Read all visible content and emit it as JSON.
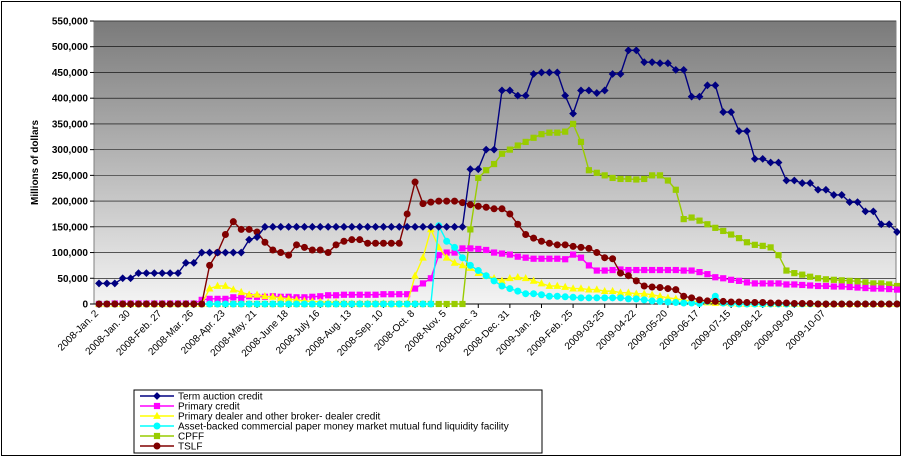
{
  "chart_data": {
    "type": "line",
    "title": "",
    "xlabel": "",
    "ylabel": "Millions of dollars",
    "ylim": [
      0,
      550000
    ],
    "y_ticks": [
      "0",
      "50,000",
      "100,000",
      "150,000",
      "200,000",
      "250,000",
      "300,000",
      "350,000",
      "400,000",
      "450,000",
      "500,000",
      "550,000"
    ],
    "grid": true,
    "legend_position": "bottom-left",
    "x_tick_labels": [
      "2008-Jan. 2",
      "2008-Jan. 30",
      "2008-Feb. 27",
      "2008-Mar. 26",
      "2008-Apr. 23",
      "2008-May. 21",
      "2008-June 18",
      "2008-July 16",
      "2008-Aug. 13",
      "2008-Sep. 10",
      "2008-Oct. 8",
      "2008-Nov. 5",
      "2008-Dec. 3",
      "2008-Dec. 31",
      "2009-Jan. 28",
      "2009-Feb. 25",
      "2009-03-25",
      "2009-04-22",
      "2009-05-20",
      "2009-06-17",
      "2009-07-15",
      "2009-08-12",
      "2009-09-09",
      "2009-10-07"
    ],
    "series": [
      {
        "name": "Term auction credit",
        "color": "#000080",
        "marker": "diamond",
        "values": [
          40000,
          40000,
          40000,
          50000,
          50000,
          60000,
          60000,
          60000,
          60000,
          60000,
          60000,
          80000,
          80000,
          100000,
          100000,
          100000,
          100000,
          100000,
          100000,
          125000,
          130000,
          150000,
          150000,
          150000,
          150000,
          150000,
          150000,
          150000,
          150000,
          150000,
          150000,
          150000,
          150000,
          150000,
          150000,
          150000,
          150000,
          150000,
          150000,
          150000,
          150000,
          150000,
          150000,
          150000,
          150000,
          150000,
          150000,
          262000,
          262000,
          300000,
          300000,
          415000,
          415000,
          405000,
          405000,
          447000,
          450000,
          450000,
          450000,
          405000,
          370000,
          415000,
          415000,
          410000,
          415000,
          447000,
          447000,
          493000,
          493000,
          470000,
          470000,
          468000,
          468000,
          455000,
          455000,
          403000,
          403000,
          425000,
          425000,
          373000,
          373000,
          336000,
          336000,
          282000,
          282000,
          275000,
          275000,
          240000,
          240000,
          235000,
          235000,
          222000,
          222000,
          212000,
          212000,
          198000,
          198000,
          180000,
          180000,
          155000,
          155000,
          140000
        ]
      },
      {
        "name": "Primary credit",
        "color": "#ff00ff",
        "marker": "square",
        "values": [
          0,
          0,
          1000,
          1000,
          1000,
          1000,
          1000,
          1000,
          1000,
          1000,
          1000,
          1000,
          1000,
          8000,
          10000,
          10000,
          10000,
          13000,
          12000,
          15000,
          14000,
          14000,
          15000,
          14000,
          14000,
          13000,
          13000,
          14000,
          15000,
          17000,
          17000,
          18000,
          18000,
          18000,
          18000,
          18000,
          19000,
          19000,
          19000,
          19000,
          30000,
          40000,
          50000,
          95000,
          100000,
          100000,
          108000,
          108000,
          107000,
          105000,
          100000,
          98000,
          96000,
          92000,
          90000,
          88000,
          88000,
          88000,
          88000,
          87000,
          96000,
          90000,
          75000,
          65000,
          65000,
          66000,
          67000,
          66000,
          66000,
          66000,
          66000,
          66000,
          66000,
          66000,
          65000,
          65000,
          62000,
          58000,
          52000,
          50000,
          47000,
          45000,
          42000,
          40000,
          40000,
          40000,
          40000,
          38000,
          38000,
          37000,
          36000,
          35000,
          35000,
          34000,
          34000,
          33000,
          32000,
          31000,
          30000,
          30000,
          29000,
          28000
        ]
      },
      {
        "name": "Primary dealer and other broker- dealer credit",
        "color": "#ffff00",
        "marker": "triangle",
        "values": [
          0,
          0,
          0,
          0,
          0,
          0,
          0,
          0,
          0,
          0,
          0,
          0,
          0,
          0,
          30000,
          35000,
          35000,
          28000,
          23000,
          18000,
          18000,
          15000,
          14000,
          12000,
          10000,
          8000,
          6000,
          5000,
          4000,
          3000,
          3000,
          2000,
          1000,
          1000,
          1000,
          1000,
          1000,
          0,
          0,
          0,
          55000,
          90000,
          145000,
          110000,
          90000,
          80000,
          75000,
          70000,
          60000,
          55000,
          50000,
          45000,
          50000,
          52000,
          50000,
          45000,
          40000,
          35000,
          35000,
          33000,
          30000,
          30000,
          28000,
          28000,
          25000,
          25000,
          22000,
          22000,
          20000,
          20000,
          18000,
          15000,
          12000,
          10000,
          8000,
          5000,
          5000,
          3000,
          2000,
          2000,
          1000,
          0,
          0,
          0,
          0,
          0,
          0,
          0,
          0,
          0,
          0,
          0,
          0,
          0,
          0,
          0,
          0,
          0,
          0,
          0,
          0,
          0
        ]
      },
      {
        "name": "Asset-backed commercial paper money market mutual fund liquidity facility",
        "color": "#00ffff",
        "marker": "circle",
        "values": [
          0,
          0,
          0,
          0,
          0,
          0,
          0,
          0,
          0,
          0,
          0,
          0,
          0,
          0,
          0,
          0,
          0,
          0,
          0,
          0,
          0,
          0,
          0,
          0,
          0,
          0,
          0,
          0,
          0,
          0,
          0,
          0,
          0,
          0,
          0,
          0,
          0,
          0,
          0,
          0,
          0,
          0,
          0,
          152000,
          122000,
          110000,
          90000,
          75000,
          65000,
          55000,
          45000,
          35000,
          30000,
          25000,
          20000,
          20000,
          18000,
          15000,
          15000,
          14000,
          13000,
          12000,
          12000,
          12000,
          12000,
          12000,
          12000,
          10000,
          10000,
          8000,
          6000,
          5000,
          4000,
          3000,
          2000,
          2000,
          1000,
          5000,
          15000,
          2000,
          1000,
          0,
          0,
          0,
          0,
          0,
          0,
          0,
          0,
          0,
          0,
          0,
          0,
          0,
          0,
          0,
          0,
          0,
          0,
          0,
          0,
          0
        ]
      },
      {
        "name": "CPFF",
        "color": "#99cc00",
        "marker": "square",
        "values": [
          0,
          0,
          0,
          0,
          0,
          0,
          0,
          0,
          0,
          0,
          0,
          0,
          0,
          0,
          0,
          0,
          0,
          0,
          0,
          0,
          0,
          0,
          0,
          0,
          0,
          0,
          0,
          0,
          0,
          0,
          0,
          0,
          0,
          0,
          0,
          0,
          0,
          0,
          0,
          0,
          0,
          0,
          0,
          0,
          0,
          0,
          0,
          145000,
          245000,
          260000,
          272000,
          292000,
          300000,
          308000,
          315000,
          323000,
          330000,
          333000,
          333000,
          335000,
          350000,
          315000,
          260000,
          255000,
          250000,
          245000,
          243000,
          243000,
          242000,
          243000,
          250000,
          250000,
          240000,
          222000,
          165000,
          168000,
          162000,
          155000,
          148000,
          142000,
          135000,
          128000,
          120000,
          115000,
          113000,
          110000,
          95000,
          65000,
          60000,
          57000,
          53000,
          50000,
          48000,
          47000,
          46000,
          45000,
          44000,
          42000,
          40000,
          40000,
          38000,
          35000
        ]
      },
      {
        "name": "TSLF",
        "color": "#800000",
        "marker": "circle",
        "values": [
          0,
          0,
          0,
          0,
          0,
          0,
          0,
          0,
          0,
          0,
          0,
          0,
          0,
          0,
          75000,
          100000,
          135000,
          160000,
          145000,
          145000,
          140000,
          120000,
          105000,
          100000,
          95000,
          115000,
          110000,
          105000,
          105000,
          100000,
          115000,
          122000,
          125000,
          125000,
          118000,
          118000,
          118000,
          118000,
          118000,
          175000,
          237000,
          195000,
          198000,
          200000,
          200000,
          200000,
          197000,
          193000,
          190000,
          188000,
          185000,
          185000,
          175000,
          155000,
          135000,
          128000,
          122000,
          118000,
          115000,
          115000,
          112000,
          110000,
          108000,
          100000,
          90000,
          88000,
          60000,
          55000,
          45000,
          35000,
          33000,
          32000,
          30000,
          28000,
          15000,
          12000,
          8000,
          6000,
          5000,
          5000,
          4000,
          4000,
          3000,
          3000,
          3000,
          2000,
          2000,
          2000,
          1000,
          1000,
          1000,
          0,
          0,
          0,
          0,
          0,
          0,
          0,
          0,
          0,
          0,
          0
        ]
      }
    ]
  }
}
